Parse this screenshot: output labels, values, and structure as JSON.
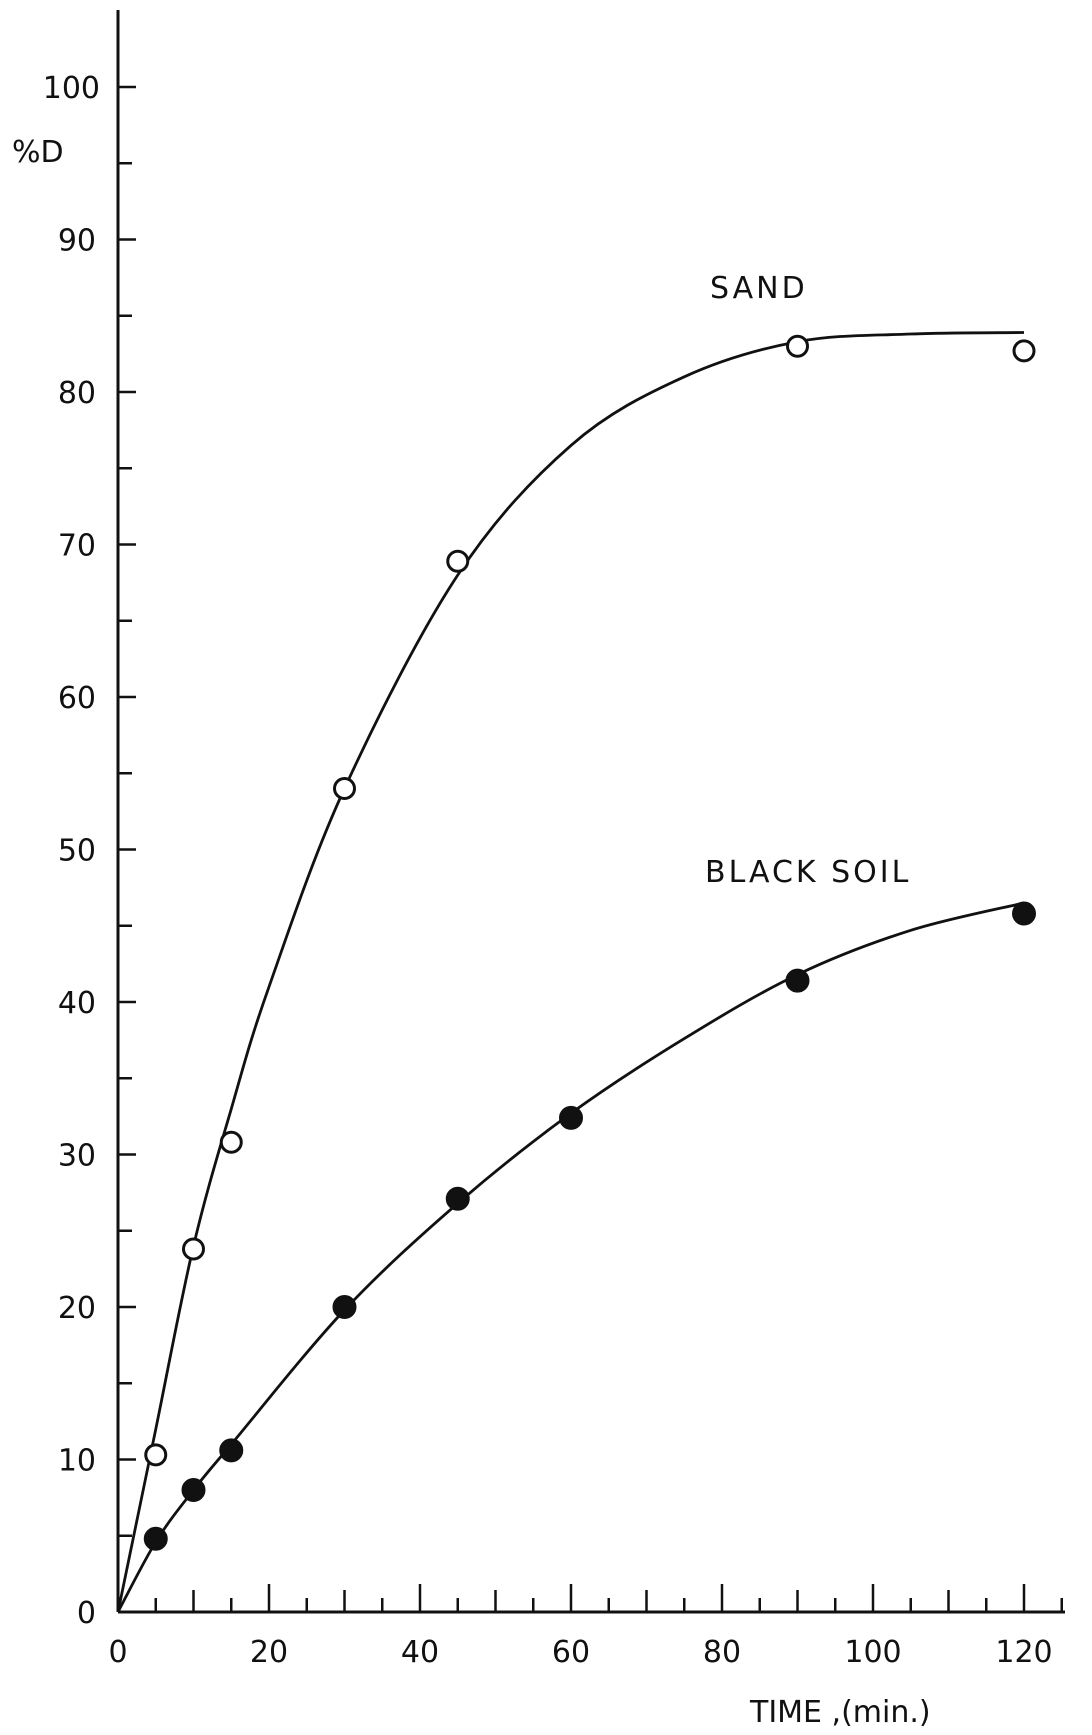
{
  "chart_data": {
    "type": "scatter",
    "ylabel": "%D",
    "xlabel": "TIME ,(min.)",
    "xlim": [
      0,
      125
    ],
    "ylim": [
      0,
      105
    ],
    "x_ticks": [
      0,
      20,
      40,
      60,
      80,
      100,
      120
    ],
    "y_ticks": [
      0,
      10,
      20,
      30,
      40,
      50,
      60,
      70,
      80,
      90,
      100
    ],
    "grid": false,
    "series": [
      {
        "name": "SAND",
        "marker": "open-circle",
        "x": [
          5,
          10,
          15,
          30,
          45,
          90,
          120
        ],
        "y": [
          10.3,
          23.8,
          30.8,
          54,
          68.9,
          83,
          82.7
        ],
        "curve_x": [
          0,
          5,
          10,
          15,
          20,
          30,
          45,
          60,
          75,
          90,
          105,
          120
        ],
        "curve_y": [
          0,
          12,
          24,
          33,
          41,
          54,
          68,
          76.5,
          81,
          83.3,
          83.8,
          83.9
        ]
      },
      {
        "name": "BLACK SOIL",
        "marker": "filled-circle",
        "x": [
          5,
          10,
          15,
          30,
          45,
          60,
          90,
          120
        ],
        "y": [
          4.8,
          8,
          10.6,
          20,
          27.1,
          32.4,
          41.4,
          45.8
        ],
        "curve_x": [
          0,
          5,
          10,
          15,
          30,
          45,
          60,
          75,
          90,
          105,
          120
        ],
        "curve_y": [
          0,
          4.6,
          8,
          11,
          19.8,
          26.8,
          32.7,
          37.6,
          41.8,
          44.7,
          46.5
        ]
      }
    ]
  }
}
